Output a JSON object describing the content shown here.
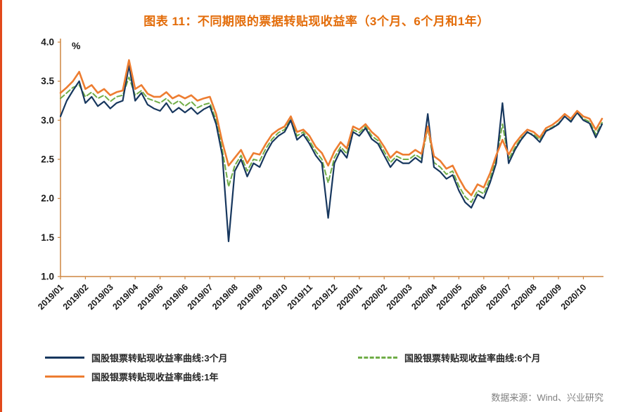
{
  "title": "图表 11：不同期限的票据转贴现收益率（3个月、6个月和1年）",
  "source": "数据来源：Wind、兴业研究",
  "colors": {
    "title": "#E36C09",
    "accent_bar": "#E2491B",
    "tick_text": "#1A1A1A",
    "source_text": "#808080"
  },
  "chart_data": {
    "type": "line",
    "title": "图表 11：不同期限的票据转贴现收益率（3个月、6个月和1年）",
    "xlabel": "",
    "ylabel": "%",
    "ylim": [
      1.0,
      4.0
    ],
    "ytick_step": 0.5,
    "grid": false,
    "legend_position": "bottom",
    "axis_color": "#CE8640",
    "points_per_month": 4,
    "x_tick_labels": [
      "2019/01",
      "2019/02",
      "2019/03",
      "2019/04",
      "2019/05",
      "2019/06",
      "2019/07",
      "2019/08",
      "2019/09",
      "2019/10",
      "2019/11",
      "2019/12",
      "2020/01",
      "2020/02",
      "2020/03",
      "2020/04",
      "2020/05",
      "2020/06",
      "2020/07",
      "2020/08",
      "2020/09",
      "2020/10"
    ],
    "series": [
      {
        "name": "国股银票转贴现收益率曲线:3个月",
        "color": "#17375E",
        "style": "solid",
        "dash": "",
        "width": 2.2,
        "values": [
          3.05,
          3.25,
          3.38,
          3.5,
          3.22,
          3.3,
          3.18,
          3.24,
          3.15,
          3.22,
          3.25,
          3.7,
          3.25,
          3.35,
          3.2,
          3.15,
          3.12,
          3.22,
          3.1,
          3.16,
          3.1,
          3.16,
          3.08,
          3.14,
          3.18,
          2.95,
          2.55,
          1.45,
          2.35,
          2.5,
          2.28,
          2.45,
          2.4,
          2.58,
          2.72,
          2.8,
          2.85,
          3.0,
          2.75,
          2.82,
          2.7,
          2.55,
          2.45,
          1.75,
          2.45,
          2.62,
          2.52,
          2.85,
          2.8,
          2.9,
          2.76,
          2.7,
          2.55,
          2.4,
          2.5,
          2.45,
          2.45,
          2.52,
          2.46,
          3.08,
          2.4,
          2.34,
          2.25,
          2.3,
          2.1,
          1.95,
          1.88,
          2.05,
          2.0,
          2.2,
          2.45,
          3.22,
          2.45,
          2.62,
          2.75,
          2.85,
          2.8,
          2.72,
          2.86,
          2.9,
          2.95,
          3.05,
          2.98,
          3.1,
          3.0,
          2.96,
          2.78,
          2.95
        ]
      },
      {
        "name": "国股银票转贴现收益率曲线:6个月",
        "color": "#70AD47",
        "style": "dashed",
        "dash": "7 4",
        "width": 2,
        "values": [
          3.28,
          3.35,
          3.42,
          3.45,
          3.3,
          3.36,
          3.28,
          3.32,
          3.24,
          3.3,
          3.32,
          3.55,
          3.32,
          3.38,
          3.28,
          3.25,
          3.22,
          3.28,
          3.2,
          3.25,
          3.18,
          3.24,
          3.16,
          3.2,
          3.22,
          3.0,
          2.62,
          2.15,
          2.42,
          2.55,
          2.35,
          2.5,
          2.48,
          2.64,
          2.76,
          2.84,
          2.88,
          3.02,
          2.8,
          2.85,
          2.74,
          2.6,
          2.5,
          2.2,
          2.52,
          2.66,
          2.57,
          2.88,
          2.84,
          2.92,
          2.8,
          2.74,
          2.6,
          2.46,
          2.54,
          2.5,
          2.5,
          2.56,
          2.51,
          2.9,
          2.46,
          2.4,
          2.31,
          2.35,
          2.16,
          2.02,
          1.95,
          2.1,
          2.06,
          2.25,
          2.5,
          2.95,
          2.5,
          2.65,
          2.77,
          2.84,
          2.82,
          2.75,
          2.87,
          2.91,
          2.96,
          3.05,
          2.99,
          3.09,
          3.02,
          2.98,
          2.82,
          2.97
        ]
      },
      {
        "name": "国股银票转贴现收益率曲线:1年",
        "color": "#ED7D31",
        "style": "solid",
        "dash": "",
        "width": 2.6,
        "values": [
          3.35,
          3.42,
          3.5,
          3.62,
          3.4,
          3.45,
          3.35,
          3.4,
          3.32,
          3.36,
          3.38,
          3.77,
          3.4,
          3.45,
          3.34,
          3.3,
          3.3,
          3.36,
          3.28,
          3.32,
          3.28,
          3.32,
          3.25,
          3.28,
          3.3,
          3.08,
          2.72,
          2.42,
          2.52,
          2.62,
          2.45,
          2.58,
          2.56,
          2.7,
          2.82,
          2.88,
          2.92,
          3.05,
          2.85,
          2.88,
          2.8,
          2.66,
          2.58,
          2.42,
          2.6,
          2.72,
          2.64,
          2.92,
          2.88,
          2.95,
          2.85,
          2.78,
          2.66,
          2.52,
          2.6,
          2.56,
          2.56,
          2.62,
          2.57,
          2.92,
          2.54,
          2.48,
          2.38,
          2.42,
          2.26,
          2.12,
          2.04,
          2.18,
          2.14,
          2.32,
          2.55,
          2.75,
          2.56,
          2.7,
          2.8,
          2.88,
          2.85,
          2.78,
          2.9,
          2.94,
          3.0,
          3.08,
          3.02,
          3.12,
          3.05,
          3.02,
          2.88,
          3.02
        ]
      }
    ]
  }
}
